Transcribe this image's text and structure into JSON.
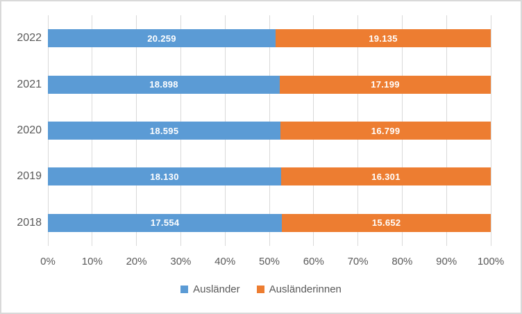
{
  "chart_data": {
    "type": "bar",
    "subtype": "horizontal-100pct-stacked",
    "title": "",
    "xlabel": "",
    "ylabel": "",
    "xlim": [
      0,
      100
    ],
    "grid": true,
    "legend_position": "bottom",
    "categories": [
      "2022",
      "2021",
      "2020",
      "2019",
      "2018"
    ],
    "series": [
      {
        "name": "Ausländer",
        "color": "#5B9BD5",
        "values": [
          20259,
          18898,
          18595,
          18130,
          17554
        ],
        "labels": [
          "20.259",
          "18.898",
          "18.595",
          "18.130",
          "17.554"
        ]
      },
      {
        "name": "Ausländerinnen",
        "color": "#ED7D31",
        "values": [
          19135,
          17199,
          16799,
          16301,
          15652
        ],
        "labels": [
          "19.135",
          "17.199",
          "16.799",
          "16.301",
          "15.652"
        ]
      }
    ],
    "x_ticks": [
      "0%",
      "10%",
      "20%",
      "30%",
      "40%",
      "50%",
      "60%",
      "70%",
      "80%",
      "90%",
      "100%"
    ]
  },
  "colors": {
    "series_1": "#5B9BD5",
    "series_2": "#ED7D31",
    "gridline": "#D9D9D9",
    "frame_border": "#D9D9D9",
    "axis_text": "#595959",
    "value_label_text": "#FFFFFF",
    "background": "#FFFFFF"
  }
}
